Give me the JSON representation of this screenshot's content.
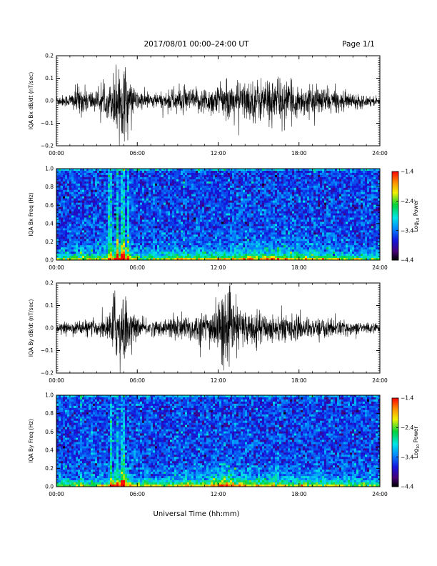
{
  "header": {
    "title": "2017/08/01   00:00–24:00 UT",
    "page_label": "Page 1/1"
  },
  "footer": {
    "xlabel": "Universal Time (hh:mm)"
  },
  "chart_data": [
    {
      "type": "line",
      "ylabel": "IQA Bx dB/dt (nT/sec)",
      "xticks": [
        "00:00",
        "06:00",
        "12:00",
        "18:00",
        "24:00"
      ],
      "xlim": [
        0,
        24
      ],
      "ylim": [
        -0.2,
        0.2
      ],
      "yticks": [
        "0.2",
        "0.1",
        "0.0",
        "−0.1",
        "−0.2"
      ],
      "envelope_x": [
        0,
        0.8,
        1.2,
        1.6,
        2.0,
        2.5,
        3.0,
        3.5,
        4.0,
        4.2,
        4.5,
        4.8,
        5.0,
        5.2,
        5.6,
        6.0,
        7.0,
        8.0,
        8.5,
        9.0,
        10.0,
        11.0,
        12.0,
        13.0,
        14.0,
        15.0,
        16.0,
        17.0,
        18.0,
        19.0,
        20.0,
        21.0,
        22.0,
        23.0,
        24.0
      ],
      "envelope_y": [
        0.03,
        0.03,
        0.05,
        0.08,
        0.07,
        0.06,
        0.05,
        0.06,
        0.09,
        0.14,
        0.21,
        0.16,
        0.21,
        0.14,
        0.08,
        0.05,
        0.04,
        0.04,
        0.06,
        0.07,
        0.06,
        0.07,
        0.08,
        0.09,
        0.1,
        0.11,
        0.12,
        0.1,
        0.08,
        0.07,
        0.07,
        0.05,
        0.04,
        0.03,
        0.02
      ]
    },
    {
      "type": "heatmap",
      "ylabel": "IQA Bx Freq (Hz)",
      "xticks": [
        "00:00",
        "06:00",
        "12:00",
        "18:00",
        "24:00"
      ],
      "xlim": [
        0,
        24
      ],
      "ylim": [
        0,
        1.0
      ],
      "yticks": [
        "1.0",
        "0.8",
        "0.6",
        "0.4",
        "0.2",
        "0.0"
      ],
      "colorbar": {
        "label": "Log",
        "label_sub": "10",
        "label_rest": " Power",
        "ticks": [
          "−1.4",
          "−2.4",
          "−3.4",
          "−4.4"
        ],
        "range": [
          -4.4,
          -1.4
        ]
      }
    },
    {
      "type": "line",
      "ylabel": "IQA By dB/dt (nT/sec)",
      "xticks": [
        "00:00",
        "06:00",
        "12:00",
        "18:00",
        "24:00"
      ],
      "xlim": [
        0,
        24
      ],
      "ylim": [
        -0.2,
        0.2
      ],
      "yticks": [
        "0.2",
        "0.1",
        "0.0",
        "−0.1",
        "−0.2"
      ],
      "envelope_x": [
        0,
        1.0,
        2.0,
        3.0,
        3.5,
        4.0,
        4.3,
        4.6,
        4.9,
        5.2,
        5.5,
        6.0,
        7.0,
        8.0,
        8.5,
        9.0,
        10.0,
        11.0,
        11.5,
        12.0,
        12.3,
        12.6,
        13.0,
        13.5,
        14.0,
        15.0,
        16.0,
        17.0,
        18.0,
        19.0,
        20.0,
        21.0,
        22.0,
        23.0,
        24.0
      ],
      "envelope_y": [
        0.02,
        0.03,
        0.04,
        0.04,
        0.05,
        0.08,
        0.21,
        0.12,
        0.21,
        0.15,
        0.08,
        0.05,
        0.04,
        0.04,
        0.06,
        0.07,
        0.07,
        0.08,
        0.1,
        0.13,
        0.2,
        0.16,
        0.15,
        0.11,
        0.09,
        0.08,
        0.07,
        0.07,
        0.06,
        0.05,
        0.05,
        0.04,
        0.03,
        0.03,
        0.02
      ]
    },
    {
      "type": "heatmap",
      "ylabel": "IQA By Freq (Hz)",
      "xticks": [
        "00:00",
        "06:00",
        "12:00",
        "18:00",
        "24:00"
      ],
      "xlim": [
        0,
        24
      ],
      "ylim": [
        0,
        1.0
      ],
      "yticks": [
        "1.0",
        "0.8",
        "0.6",
        "0.4",
        "0.2",
        "0.0"
      ],
      "colorbar": {
        "label": "Log",
        "label_sub": "10",
        "label_rest": " Power",
        "ticks": [
          "−1.4",
          "−2.4",
          "−3.4",
          "−4.4"
        ],
        "range": [
          -4.4,
          -1.4
        ]
      }
    }
  ]
}
